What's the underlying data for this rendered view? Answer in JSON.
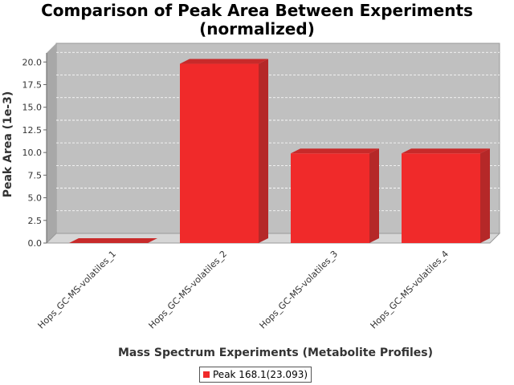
{
  "chart_data": {
    "type": "bar",
    "title_line1": "Comparison of Peak Area Between Experiments",
    "title_line2": "(normalized)",
    "xlabel": "Mass Spectrum Experiments (Metabolite Profiles)",
    "ylabel": "Peak Area (1e-3)",
    "categories": [
      "Hops_GC-MS-volatiles_1",
      "Hops_GC-MS-volatiles_2",
      "Hops_GC-MS-volatiles_3",
      "Hops_GC-MS-volatiles_4"
    ],
    "series": [
      {
        "name": "Peak 168.1(23.093)",
        "values": [
          0.0,
          19.8,
          9.9,
          9.9
        ],
        "color": "#f02a2a"
      }
    ],
    "ylim": [
      0,
      21.0
    ],
    "yticks": [
      "0.0",
      "2.5",
      "5.0",
      "7.5",
      "10.0",
      "12.5",
      "15.0",
      "17.5",
      "20.0"
    ],
    "grid": true,
    "legend_position": "bottom-center",
    "plot_background": "#c0c0c0"
  }
}
